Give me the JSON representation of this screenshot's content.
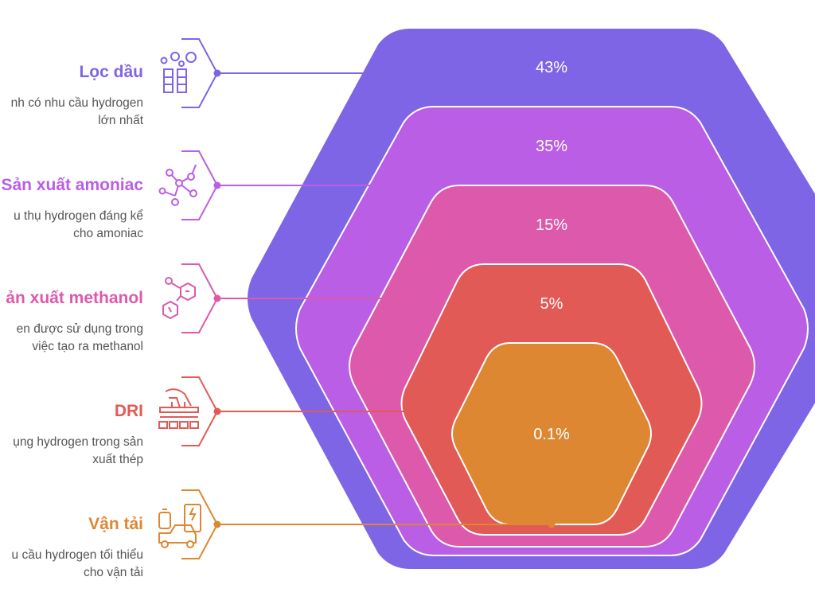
{
  "colors": {
    "loc_dau": "#7d65e6",
    "amoniac": "#b95ee5",
    "methanol": "#dd59ab",
    "dri": "#e25a55",
    "van_tai": "#dd8732"
  },
  "items": [
    {
      "key": "loc_dau",
      "label": "Lọc dầu",
      "desc_lines": [
        "nh có nhu cầu hydrogen",
        "lớn nhất"
      ],
      "percent": "43%",
      "value": 43,
      "icon": "refinery-icon"
    },
    {
      "key": "amoniac",
      "label": "Sản xuất amoniac",
      "desc_lines": [
        "u thụ hydrogen đáng kể",
        "cho amoniac"
      ],
      "percent": "35%",
      "value": 35,
      "icon": "molecule-network-icon"
    },
    {
      "key": "methanol",
      "label": "ản xuất methanol",
      "desc_lines": [
        "en được sử dụng trong",
        "việc tạo ra methanol"
      ],
      "percent": "15%",
      "value": 15,
      "icon": "chemical-structure-icon"
    },
    {
      "key": "dri",
      "label": "DRI",
      "desc_lines": [
        "ụng hydrogen trong sản",
        "xuất thép"
      ],
      "percent": "5%",
      "value": 5,
      "icon": "steel-furnace-icon"
    },
    {
      "key": "van_tai",
      "label": "Vận tải",
      "desc_lines": [
        "u cầu hydrogen tối thiểu",
        "cho vận tải"
      ],
      "percent": "0.1%",
      "value": 0.1,
      "icon": "hydrogen-vehicle-icon"
    }
  ]
}
